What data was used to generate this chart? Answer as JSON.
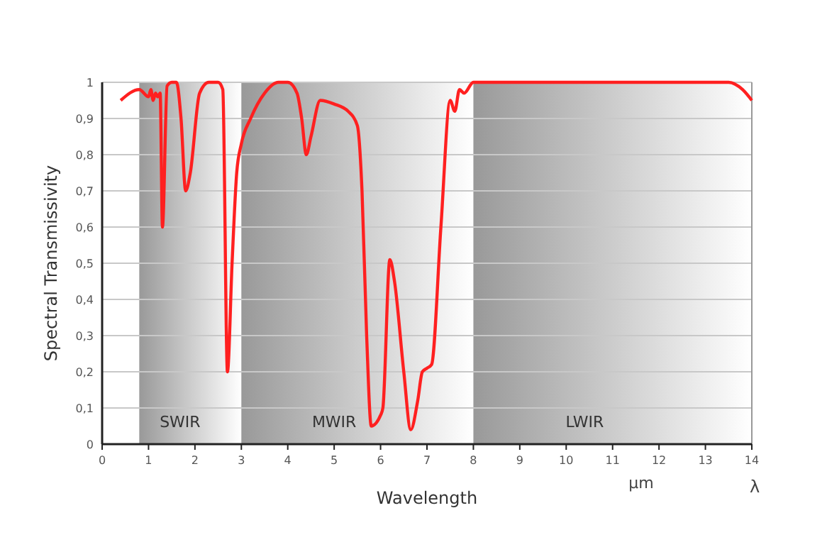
{
  "chart_data": {
    "type": "line",
    "xlabel": "Wavelength",
    "ylabel": "Spectral Transmissivity",
    "x": [
      0.4,
      0.8,
      1.0,
      1.05,
      1.1,
      1.15,
      1.2,
      1.25,
      1.3,
      1.4,
      1.5,
      1.6,
      1.7,
      1.8,
      1.9,
      2.1,
      2.3,
      2.5,
      2.6,
      2.7,
      2.8,
      2.9,
      3.0,
      3.2,
      3.5,
      3.8,
      4.0,
      4.2,
      4.3,
      4.4,
      4.5,
      4.7,
      5.0,
      5.3,
      5.5,
      5.6,
      5.7,
      5.8,
      6.0,
      6.05,
      6.2,
      6.3,
      6.5,
      6.65,
      6.8,
      6.9,
      7.0,
      7.1,
      7.3,
      7.5,
      7.6,
      7.7,
      7.8,
      8.0,
      13.5,
      13.8,
      14
    ],
    "series": [
      {
        "color": "#ff2020",
        "values": [
          0.95,
          0.98,
          0.96,
          0.98,
          0.95,
          0.97,
          0.96,
          0.97,
          0.6,
          0.99,
          1.0,
          1.0,
          0.9,
          0.7,
          0.75,
          0.97,
          1.0,
          1.0,
          0.98,
          0.2,
          0.5,
          0.75,
          0.83,
          0.9,
          0.97,
          1.0,
          1.0,
          0.97,
          0.9,
          0.8,
          0.85,
          0.95,
          0.94,
          0.92,
          0.88,
          0.7,
          0.3,
          0.05,
          0.08,
          0.1,
          0.51,
          0.45,
          0.2,
          0.04,
          0.12,
          0.2,
          0.21,
          0.22,
          0.6,
          0.95,
          0.92,
          0.98,
          0.97,
          1.0,
          1.0,
          0.98,
          0.95
        ]
      }
    ],
    "xlim": [
      0,
      14
    ],
    "xticks": [
      0,
      1,
      2,
      3,
      4,
      5,
      6,
      7,
      8,
      9,
      10,
      11,
      12,
      13,
      14
    ],
    "ylim": [
      0,
      1
    ],
    "yticks": [
      0,
      {
        "value": 0.1,
        "label": "0,1"
      },
      {
        "value": 0.2,
        "label": "0,2"
      },
      {
        "value": 0.3,
        "label": "0,3"
      },
      {
        "value": 0.4,
        "label": "0,4"
      },
      {
        "value": 0.5,
        "label": "0,5"
      },
      {
        "value": 0.6,
        "label": "0,6"
      },
      {
        "value": 0.7,
        "label": "0,7"
      },
      {
        "value": 0.8,
        "label": "0,8"
      },
      {
        "value": 0.9,
        "label": "0,9"
      },
      1
    ],
    "grid": "y",
    "marker": "none",
    "line_style": "solid",
    "bands": [
      {
        "axis": "x",
        "from": 0.8,
        "to": 3,
        "label": "SWIR",
        "color": "#999999"
      },
      {
        "axis": "x",
        "from": 3,
        "to": 8,
        "label": "MWIR",
        "color": "#999999"
      },
      {
        "axis": "x",
        "from": 8,
        "to": 14,
        "label": "LWIR",
        "color": "#999999"
      }
    ],
    "annotations": [
      "µm",
      "λ"
    ]
  }
}
